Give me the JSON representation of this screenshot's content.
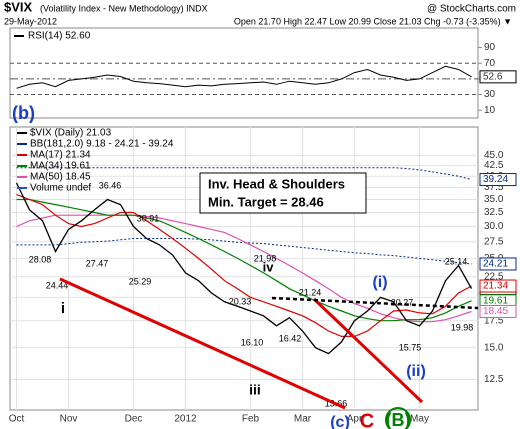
{
  "header": {
    "symbol": "$VIX",
    "description": "(Volatility Index - New Methodology) INDX",
    "source": "@ StockCharts.com",
    "date": "29-May-2012",
    "quote": "Open 21.70  High 22.47  Low 20.99  Close 21.03  Chg -0.73 (-3.35%) ▼"
  },
  "chart_data": [
    {
      "type": "line",
      "title": "RSI(14) 52.60",
      "color": "#000000",
      "values": [
        38,
        43,
        45,
        40,
        48,
        50,
        52,
        55,
        53,
        47,
        45,
        44,
        42,
        40,
        42,
        41,
        43,
        44,
        45,
        46,
        43,
        47,
        45,
        43,
        45,
        50,
        58,
        62,
        55,
        52,
        48,
        50,
        58,
        66,
        62,
        52.6
      ],
      "ylim": [
        0,
        115
      ],
      "yticks": [
        90,
        70,
        50,
        30,
        10
      ],
      "reference_lines": [
        70,
        50,
        30
      ]
    },
    {
      "type": "line",
      "panel_label": "(b)",
      "categories": [
        "Oct",
        null,
        null,
        null,
        "Nov",
        null,
        null,
        null,
        null,
        "Dec",
        null,
        null,
        null,
        "2012",
        null,
        null,
        null,
        null,
        "Feb",
        null,
        null,
        null,
        "Mar",
        null,
        null,
        null,
        "Apr",
        null,
        null,
        null,
        null,
        "May",
        null,
        null,
        null,
        null
      ],
      "series": [
        {
          "name": "$VIX (Daily) 21.03",
          "color": "#000000",
          "values": [
            38.5,
            33,
            31,
            26,
            29.5,
            31,
            33,
            35,
            34,
            30,
            28,
            27,
            25.5,
            23,
            22,
            20.5,
            19.5,
            19,
            18.5,
            18,
            17,
            17.8,
            16.5,
            15,
            14.5,
            15.5,
            17.5,
            18.5,
            20,
            19.5,
            17.5,
            17,
            18.5,
            22,
            24,
            21.03
          ]
        },
        {
          "name": "MA(17) 21.34",
          "color": "#e00000",
          "values": [
            36,
            35,
            34,
            32,
            30.5,
            30,
            30.5,
            31.5,
            32.5,
            32.5,
            31,
            29.5,
            28,
            26.5,
            25,
            23.5,
            22,
            21,
            20,
            19.5,
            19,
            18.5,
            18,
            17.3,
            16.5,
            16,
            16,
            16.5,
            17.5,
            18.5,
            18.6,
            18.3,
            18.2,
            19,
            20.5,
            21.34
          ]
        },
        {
          "name": "MA(34) 19.61",
          "color": "#008000",
          "values": [
            35,
            35,
            34.5,
            34,
            33.5,
            33,
            32.5,
            32,
            32,
            32,
            31.5,
            31,
            30,
            29,
            28,
            27,
            26,
            25,
            24,
            23,
            22,
            21,
            20.3,
            19.6,
            19,
            18.5,
            18,
            17.7,
            17.5,
            17.5,
            17.6,
            17.6,
            17.8,
            18.3,
            19,
            19.61
          ]
        },
        {
          "name": "MA(50) 18.45",
          "color": "#e050b0",
          "values": [
            30,
            31,
            31.5,
            32,
            32,
            32,
            32,
            32,
            32,
            32,
            31.8,
            31.5,
            31,
            30.5,
            30,
            29.5,
            29,
            28,
            27,
            26,
            25,
            24,
            23,
            22,
            21,
            20,
            19.3,
            18.8,
            18.2,
            17.8,
            17.5,
            17.4,
            17.4,
            17.6,
            18,
            18.45
          ]
        }
      ],
      "bollinger": {
        "name": "BB(181,2.0) 9.18 - 24.21 - 39.24",
        "color": "#002a8c",
        "upper": [
          42,
          42,
          42,
          42,
          42,
          42,
          42,
          42,
          42,
          42,
          42,
          42,
          42,
          42,
          42,
          42,
          42,
          42,
          42,
          42,
          42,
          42,
          42,
          42,
          42,
          42,
          42,
          42,
          42,
          42,
          41.8,
          41.5,
          41,
          40.5,
          40,
          39.24
        ],
        "middle": [
          27,
          27,
          27,
          27,
          27.2,
          27.4,
          27.5,
          27.6,
          27.8,
          28,
          28,
          28,
          28,
          28,
          27.9,
          27.8,
          27.6,
          27.4,
          27.3,
          27.2,
          27,
          26.8,
          26.6,
          26.4,
          26.2,
          26,
          25.8,
          25.7,
          25.5,
          25.4,
          25.2,
          25,
          24.8,
          24.6,
          24.4,
          24.21
        ]
      },
      "volume_legend": "Volume undef",
      "ylim": [
        10.5,
        53
      ],
      "log_scale": true,
      "grid": true,
      "yticks": [
        {
          "value": 45,
          "label": "45.0"
        },
        42.5,
        {
          "value": 40,
          "label": "40.0"
        },
        37.5,
        {
          "value": 35,
          "label": "35.0"
        },
        32.5,
        {
          "value": 30,
          "label": "30.0"
        },
        27.5,
        {
          "value": 25,
          "label": "25.0"
        },
        22.5,
        {
          "value": 20,
          "label": "20.0"
        },
        17.5,
        {
          "value": 15,
          "label": "15.0"
        },
        12.5
      ],
      "callout": [
        "Inv. Head & Shoulders",
        "Min. Target = 28.46"
      ],
      "price_labels": [
        "28.08",
        "24.44",
        "27.47",
        "36.46",
        "30.91",
        "25.29",
        "21.98",
        "20.33",
        "16.10",
        "16.42",
        "21.24",
        "13.66",
        "20.27",
        "15.75",
        "25.14",
        "19.98"
      ],
      "wave_labels": [
        "i",
        "iii",
        "iv",
        "(i)",
        "(ii)",
        "(c)",
        "C",
        "(B)"
      ]
    }
  ]
}
